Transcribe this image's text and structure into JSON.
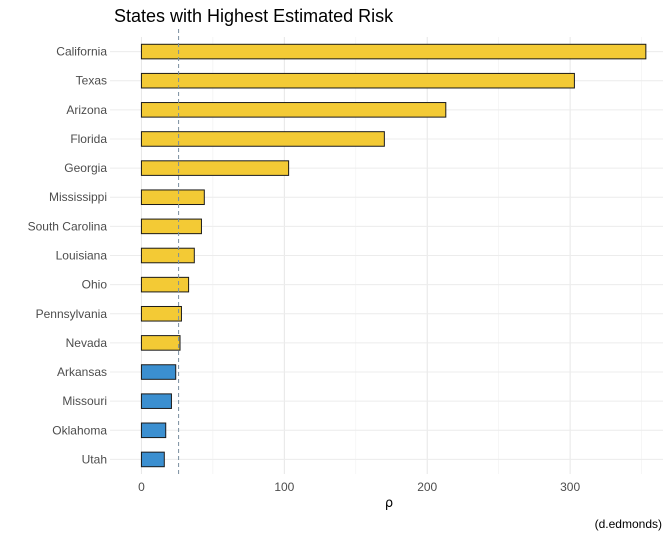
{
  "chart_data": {
    "type": "bar",
    "orientation": "horizontal",
    "title": "States with Highest Estimated Risk",
    "xlabel": "ρ",
    "ylabel": "",
    "caption": "(d.edmonds)",
    "xlim": [
      -22,
      365
    ],
    "xticks": [
      0,
      100,
      200,
      300
    ],
    "reference_line": 26,
    "grid": true,
    "colors": {
      "high": "#f3ca35",
      "low": "#3b8fd0",
      "reference_line": "#7a8fa0"
    },
    "categories": [
      "California",
      "Texas",
      "Arizona",
      "Florida",
      "Georgia",
      "Mississippi",
      "South Carolina",
      "Louisiana",
      "Ohio",
      "Pennsylvania",
      "Nevada",
      "Arkansas",
      "Missouri",
      "Oklahoma",
      "Utah"
    ],
    "values": [
      353,
      303,
      213,
      170,
      103,
      44,
      42,
      37,
      33,
      28,
      27,
      24,
      21,
      17,
      16
    ],
    "groups": [
      "high",
      "high",
      "high",
      "high",
      "high",
      "high",
      "high",
      "high",
      "high",
      "high",
      "high",
      "low",
      "low",
      "low",
      "low"
    ]
  }
}
